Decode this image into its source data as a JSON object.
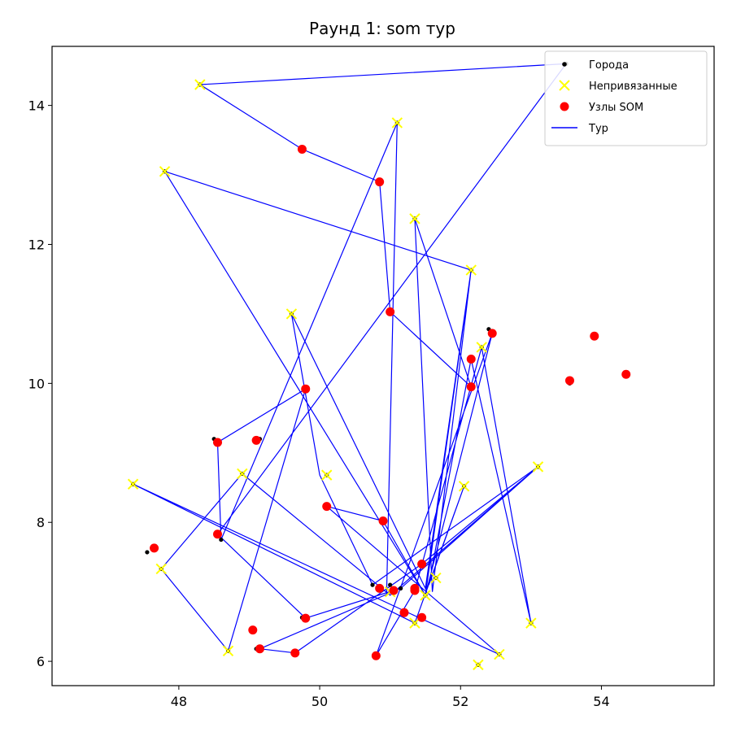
{
  "chart_data": {
    "type": "scatter",
    "title": "Раунд 1: som тур",
    "xlabel": "",
    "ylabel": "",
    "xlim": [
      46.2,
      55.6
    ],
    "ylim": [
      5.65,
      14.85
    ],
    "xticks": [
      48,
      50,
      52,
      54
    ],
    "yticks": [
      6,
      8,
      10,
      12,
      14
    ],
    "grid": false,
    "legend_placement": "top-right",
    "legend": [
      {
        "label": "Города",
        "marker": "dot",
        "color": "#000000"
      },
      {
        "label": "Непривязанные",
        "marker": "x",
        "color": "#ffff00"
      },
      {
        "label": "Узлы SOM",
        "marker": "circle",
        "color": "#ff0000"
      },
      {
        "label": "Тур",
        "marker": "line",
        "color": "#0000ff"
      }
    ],
    "series": [
      {
        "name": "Города",
        "color": "#000000",
        "points": [
          [
            53.5,
            14.6
          ],
          [
            48.3,
            14.3
          ],
          [
            51.1,
            13.75
          ],
          [
            47.8,
            13.05
          ],
          [
            51.35,
            12.37
          ],
          [
            52.15,
            11.63
          ],
          [
            49.6,
            11.0
          ],
          [
            52.3,
            10.52
          ],
          [
            52.4,
            10.78
          ],
          [
            53.55,
            10.0
          ],
          [
            48.5,
            9.2
          ],
          [
            49.15,
            9.2
          ],
          [
            48.9,
            8.7
          ],
          [
            50.1,
            8.68
          ],
          [
            47.35,
            8.55
          ],
          [
            52.05,
            8.52
          ],
          [
            53.1,
            8.8
          ],
          [
            47.55,
            7.57
          ],
          [
            48.6,
            7.75
          ],
          [
            47.75,
            7.33
          ],
          [
            50.75,
            7.1
          ],
          [
            51.0,
            7.1
          ],
          [
            51.15,
            7.05
          ],
          [
            51.5,
            6.95
          ],
          [
            51.35,
            6.55
          ],
          [
            53.0,
            6.55
          ],
          [
            49.75,
            6.63
          ],
          [
            49.1,
            6.18
          ],
          [
            48.7,
            6.15
          ],
          [
            52.25,
            5.95
          ],
          [
            52.55,
            6.1
          ],
          [
            51.65,
            7.2
          ]
        ]
      },
      {
        "name": "Непривязанные",
        "color": "#ffff00",
        "points": [
          [
            48.3,
            14.3
          ],
          [
            51.1,
            13.75
          ],
          [
            47.8,
            13.05
          ],
          [
            51.35,
            12.37
          ],
          [
            52.15,
            11.63
          ],
          [
            49.6,
            11.0
          ],
          [
            52.3,
            10.52
          ],
          [
            48.9,
            8.7
          ],
          [
            50.1,
            8.68
          ],
          [
            47.35,
            8.55
          ],
          [
            52.05,
            8.52
          ],
          [
            53.1,
            8.8
          ],
          [
            47.75,
            7.33
          ],
          [
            51.65,
            7.2
          ],
          [
            51.5,
            6.95
          ],
          [
            51.0,
            7.0
          ],
          [
            51.35,
            6.55
          ],
          [
            53.0,
            6.55
          ],
          [
            48.7,
            6.15
          ],
          [
            52.25,
            5.95
          ],
          [
            52.55,
            6.1
          ]
        ]
      },
      {
        "name": "Узлы SOM",
        "color": "#ff0000",
        "points": [
          [
            49.75,
            13.37
          ],
          [
            50.85,
            12.9
          ],
          [
            51.0,
            11.03
          ],
          [
            52.15,
            10.35
          ],
          [
            52.45,
            10.72
          ],
          [
            52.15,
            9.95
          ],
          [
            53.9,
            10.68
          ],
          [
            54.35,
            10.13
          ],
          [
            53.55,
            10.04
          ],
          [
            49.8,
            9.92
          ],
          [
            48.55,
            9.15
          ],
          [
            49.1,
            9.18
          ],
          [
            47.65,
            7.63
          ],
          [
            48.55,
            7.83
          ],
          [
            50.1,
            8.23
          ],
          [
            50.9,
            8.02
          ],
          [
            51.45,
            7.4
          ],
          [
            50.85,
            7.05
          ],
          [
            51.05,
            7.02
          ],
          [
            51.35,
            7.05
          ],
          [
            51.35,
            7.02
          ],
          [
            51.2,
            6.7
          ],
          [
            51.45,
            6.63
          ],
          [
            49.8,
            6.62
          ],
          [
            49.05,
            6.45
          ],
          [
            49.15,
            6.18
          ],
          [
            49.65,
            6.12
          ],
          [
            50.8,
            6.08
          ]
        ]
      },
      {
        "name": "Тур",
        "color": "#0000ff",
        "points": [
          [
            53.5,
            14.6
          ],
          [
            48.3,
            14.3
          ],
          [
            49.75,
            13.37
          ],
          [
            50.85,
            12.9
          ],
          [
            51.0,
            11.03
          ],
          [
            52.15,
            9.95
          ],
          [
            51.35,
            12.37
          ],
          [
            51.6,
            7.0
          ],
          [
            52.15,
            11.63
          ],
          [
            51.5,
            6.95
          ],
          [
            52.45,
            10.72
          ],
          [
            50.8,
            6.08
          ],
          [
            51.35,
            7.02
          ],
          [
            52.3,
            10.52
          ],
          [
            53.0,
            6.55
          ],
          [
            52.15,
            10.35
          ],
          [
            51.55,
            7.1
          ],
          [
            52.05,
            8.52
          ],
          [
            51.35,
            6.55
          ],
          [
            47.35,
            8.55
          ],
          [
            51.3,
            6.68
          ],
          [
            52.55,
            6.1
          ],
          [
            50.1,
            8.23
          ],
          [
            50.9,
            8.02
          ],
          [
            51.5,
            6.95
          ],
          [
            47.8,
            13.05
          ],
          [
            52.15,
            11.63
          ],
          [
            51.5,
            7.05
          ],
          [
            49.6,
            11.0
          ],
          [
            50.0,
            8.68
          ],
          [
            50.75,
            7.1
          ],
          [
            53.1,
            8.8
          ],
          [
            51.45,
            7.4
          ],
          [
            49.65,
            6.12
          ],
          [
            49.15,
            6.18
          ],
          [
            51.15,
            7.05
          ],
          [
            53.1,
            8.8
          ],
          [
            51.0,
            6.95
          ],
          [
            48.9,
            8.7
          ],
          [
            47.75,
            7.33
          ],
          [
            48.7,
            6.15
          ],
          [
            49.8,
            9.92
          ],
          [
            48.55,
            9.15
          ],
          [
            48.6,
            7.75
          ],
          [
            51.1,
            13.75
          ],
          [
            50.95,
            6.95
          ],
          [
            51.05,
            7.02
          ],
          [
            49.8,
            6.62
          ],
          [
            48.55,
            7.83
          ],
          [
            53.5,
            14.6
          ]
        ]
      }
    ]
  }
}
